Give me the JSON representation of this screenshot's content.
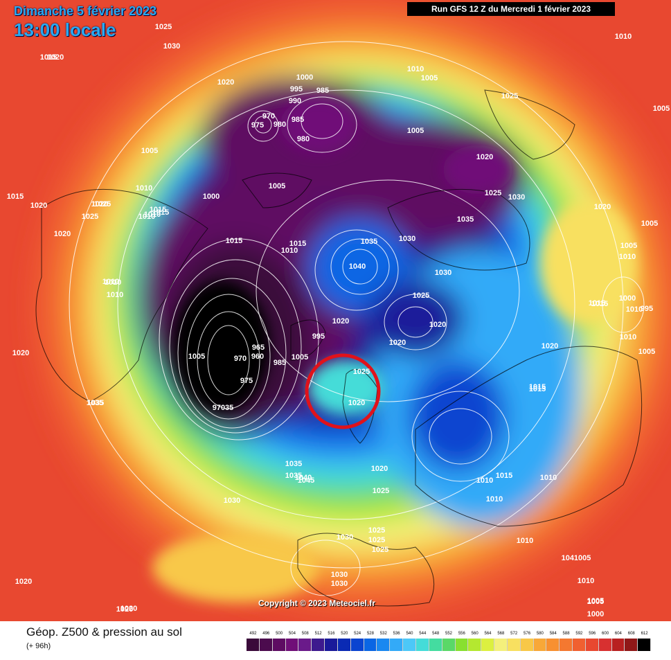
{
  "header": {
    "date": "Dimanche 5 février 2023",
    "time": "13:00 locale",
    "run": "Run GFS 12 Z du Mercredi 1 février 2023"
  },
  "copyright": "Copyright © 2023 Meteociel.fr",
  "legend": {
    "title": "Géop. Z500 & pression au sol",
    "subtitle": "(+ 96h)",
    "ticks": [
      "492",
      "496",
      "500",
      "504",
      "508",
      "512",
      "516",
      "520",
      "524",
      "528",
      "532",
      "536",
      "540",
      "544",
      "548",
      "552",
      "556",
      "560",
      "564",
      "568",
      "572",
      "576",
      "580",
      "584",
      "588",
      "592",
      "596",
      "600",
      "604",
      "608",
      "612"
    ],
    "colors": [
      "#3a0a3a",
      "#4c0b4e",
      "#5e0c62",
      "#700f78",
      "#6a1a8a",
      "#3d1a8e",
      "#1a1a9a",
      "#0a2ab4",
      "#0a44d0",
      "#0a66e4",
      "#1a88f0",
      "#33aaf8",
      "#4cc8f8",
      "#44dcd8",
      "#44dca0",
      "#5ad868",
      "#88e030",
      "#b4e830",
      "#dcf040",
      "#f4f07c",
      "#f8e060",
      "#f8c848",
      "#f8a838",
      "#f89030",
      "#f47830",
      "#f06030",
      "#e84830",
      "#d83030",
      "#b82020",
      "#901818",
      "#000000"
    ]
  },
  "pressure_labels": [
    {
      "v": "1025"
    },
    {
      "v": "1030"
    },
    {
      "v": "1015"
    },
    {
      "v": "1020"
    },
    {
      "v": "1020"
    },
    {
      "v": "1010"
    },
    {
      "v": "1005"
    },
    {
      "v": "1000"
    },
    {
      "v": "995"
    },
    {
      "v": "985"
    },
    {
      "v": "990"
    },
    {
      "v": "970"
    },
    {
      "v": "975"
    },
    {
      "v": "980"
    },
    {
      "v": "985"
    },
    {
      "v": "980"
    },
    {
      "v": "1005"
    },
    {
      "v": "1025"
    },
    {
      "v": "1005"
    },
    {
      "v": "1020"
    },
    {
      "v": "1025"
    },
    {
      "v": "1030"
    },
    {
      "v": "1035"
    },
    {
      "v": "1030"
    },
    {
      "v": "1010"
    },
    {
      "v": "1005"
    },
    {
      "v": "1000"
    },
    {
      "v": "1015"
    },
    {
      "v": "1015"
    },
    {
      "v": "1020"
    },
    {
      "v": "1025"
    },
    {
      "v": "1025"
    },
    {
      "v": "1020"
    },
    {
      "v": "1010"
    },
    {
      "v": "1015"
    },
    {
      "v": "1010"
    },
    {
      "v": "1020"
    },
    {
      "v": "1035"
    },
    {
      "v": "1040"
    },
    {
      "v": "1030"
    },
    {
      "v": "1015"
    },
    {
      "v": "1010"
    },
    {
      "v": "1015"
    },
    {
      "v": "1010"
    },
    {
      "v": "1010"
    },
    {
      "v": "1020"
    },
    {
      "v": "1005"
    },
    {
      "v": "970"
    },
    {
      "v": "965"
    },
    {
      "v": "960"
    },
    {
      "v": "985"
    },
    {
      "v": "1005"
    },
    {
      "v": "995"
    },
    {
      "v": "1020"
    },
    {
      "v": "1025"
    },
    {
      "v": "1020"
    },
    {
      "v": "1020"
    },
    {
      "v": "1025"
    },
    {
      "v": "1035"
    },
    {
      "v": "975"
    },
    {
      "v": "97035"
    },
    {
      "v": "1035"
    },
    {
      "v": "1035"
    },
    {
      "v": "1040"
    },
    {
      "v": "1045"
    },
    {
      "v": "1030"
    },
    {
      "v": "1020"
    },
    {
      "v": "1025"
    },
    {
      "v": "1030"
    },
    {
      "v": "1025"
    },
    {
      "v": "1025"
    },
    {
      "v": "1025"
    },
    {
      "v": "1030"
    },
    {
      "v": "1030"
    },
    {
      "v": "1015"
    },
    {
      "v": "1020"
    },
    {
      "v": "1010"
    },
    {
      "v": "1015"
    },
    {
      "v": "1015"
    },
    {
      "v": "1010"
    },
    {
      "v": "1010"
    },
    {
      "v": "1010"
    },
    {
      "v": "1010"
    },
    {
      "v": "1041005"
    },
    {
      "v": "1010"
    },
    {
      "v": "1005"
    },
    {
      "v": "1000"
    },
    {
      "v": "1020"
    },
    {
      "v": "1005"
    },
    {
      "v": "1005"
    },
    {
      "v": "1010"
    },
    {
      "v": "1000"
    },
    {
      "v": "995"
    },
    {
      "v": "1005"
    },
    {
      "v": "1015"
    },
    {
      "v": "1010"
    },
    {
      "v": "1010"
    },
    {
      "v": "1020"
    },
    {
      "v": "1015"
    },
    {
      "v": "1035"
    },
    {
      "v": "1020"
    },
    {
      "v": "1010"
    },
    {
      "v": "1020"
    },
    {
      "v": "1005"
    },
    {
      "v": "1020"
    },
    {
      "v": "1005"
    }
  ]
}
